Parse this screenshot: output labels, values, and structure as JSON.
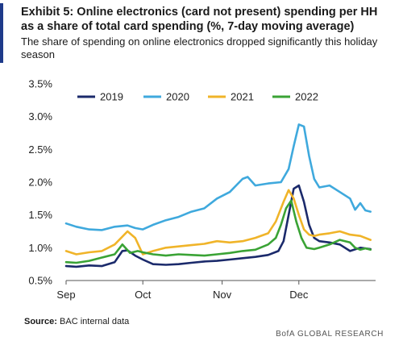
{
  "header": {
    "title": "Exhibit 5: Online electronics (card not present) spending per HH as a share of total card spending (%, 7-day moving average)",
    "subtitle": "The share of spending on online electronics dropped significantly this holiday season"
  },
  "footer": {
    "source_label": "Source:",
    "source_text": "BAC internal data",
    "brand": "BofA GLOBAL RESEARCH"
  },
  "colors": {
    "accent": "#1e3a8a",
    "axis": "#555555"
  },
  "chart_data": {
    "type": "line",
    "title": "Exhibit 5: Online electronics (card not present) spending per HH as a share of total card spending (%, 7-day moving average)",
    "xlabel": "",
    "ylabel": "",
    "ylim": [
      0.5,
      3.5
    ],
    "xlim": [
      1,
      122
    ],
    "yticks": [
      0.5,
      1.0,
      1.5,
      2.0,
      2.5,
      3.0,
      3.5
    ],
    "ytick_labels": [
      "0.5%",
      "1.0%",
      "1.5%",
      "2.0%",
      "2.5%",
      "3.0%",
      "3.5%"
    ],
    "x_unit": "day of period starting Sep 1",
    "xticks": [
      {
        "label": "Sep",
        "x": 1
      },
      {
        "label": "Oct",
        "x": 31
      },
      {
        "label": "Nov",
        "x": 62
      },
      {
        "label": "Dec",
        "x": 92
      }
    ],
    "grid": false,
    "legend_position": "top",
    "series": [
      {
        "name": "2019",
        "color": "#1b2a6b",
        "x": [
          1,
          5,
          10,
          15,
          20,
          23,
          25,
          28,
          31,
          35,
          40,
          45,
          50,
          55,
          60,
          65,
          70,
          75,
          80,
          84,
          86,
          88,
          90,
          92,
          94,
          96,
          98,
          100,
          104,
          108,
          112,
          116,
          120
        ],
        "values": [
          0.72,
          0.71,
          0.73,
          0.72,
          0.78,
          0.95,
          0.96,
          0.88,
          0.82,
          0.75,
          0.74,
          0.75,
          0.77,
          0.79,
          0.8,
          0.82,
          0.84,
          0.86,
          0.89,
          0.95,
          1.1,
          1.5,
          1.9,
          1.95,
          1.7,
          1.35,
          1.15,
          1.1,
          1.08,
          1.05,
          0.95,
          1.0,
          0.98
        ]
      },
      {
        "name": "2020",
        "color": "#3fa9dd",
        "x": [
          1,
          5,
          10,
          15,
          20,
          25,
          28,
          31,
          35,
          40,
          45,
          50,
          55,
          60,
          65,
          70,
          72,
          75,
          80,
          85,
          88,
          90,
          92,
          94,
          96,
          98,
          100,
          104,
          108,
          112,
          114,
          116,
          118,
          120
        ],
        "values": [
          1.37,
          1.32,
          1.28,
          1.27,
          1.32,
          1.34,
          1.3,
          1.28,
          1.35,
          1.42,
          1.47,
          1.55,
          1.6,
          1.75,
          1.85,
          2.05,
          2.08,
          1.95,
          1.98,
          2.0,
          2.2,
          2.55,
          2.88,
          2.85,
          2.4,
          2.05,
          1.92,
          1.95,
          1.85,
          1.75,
          1.58,
          1.68,
          1.57,
          1.55
        ]
      },
      {
        "name": "2021",
        "color": "#f0b429",
        "x": [
          1,
          5,
          10,
          15,
          20,
          25,
          28,
          31,
          35,
          40,
          45,
          50,
          55,
          60,
          65,
          70,
          75,
          80,
          83,
          86,
          88,
          90,
          92,
          94,
          96,
          98,
          100,
          104,
          108,
          112,
          116,
          120
        ],
        "values": [
          0.95,
          0.9,
          0.93,
          0.95,
          1.05,
          1.25,
          1.15,
          0.9,
          0.95,
          1.0,
          1.02,
          1.04,
          1.06,
          1.1,
          1.08,
          1.1,
          1.15,
          1.22,
          1.4,
          1.7,
          1.88,
          1.75,
          1.5,
          1.28,
          1.2,
          1.18,
          1.2,
          1.22,
          1.25,
          1.2,
          1.18,
          1.12
        ]
      },
      {
        "name": "2022",
        "color": "#3aa335",
        "x": [
          1,
          5,
          10,
          15,
          20,
          23,
          26,
          29,
          31,
          35,
          40,
          45,
          50,
          55,
          60,
          65,
          70,
          75,
          80,
          83,
          85,
          87,
          89,
          91,
          93,
          95,
          98,
          100,
          104,
          108,
          112,
          114,
          116,
          118,
          120
        ],
        "values": [
          0.78,
          0.77,
          0.8,
          0.85,
          0.9,
          1.05,
          0.92,
          0.95,
          0.93,
          0.9,
          0.88,
          0.9,
          0.89,
          0.88,
          0.9,
          0.92,
          0.95,
          0.97,
          1.05,
          1.15,
          1.35,
          1.6,
          1.72,
          1.4,
          1.15,
          1.0,
          0.98,
          1.0,
          1.05,
          1.12,
          1.08,
          1.0,
          0.97,
          0.99,
          0.97
        ]
      }
    ]
  }
}
